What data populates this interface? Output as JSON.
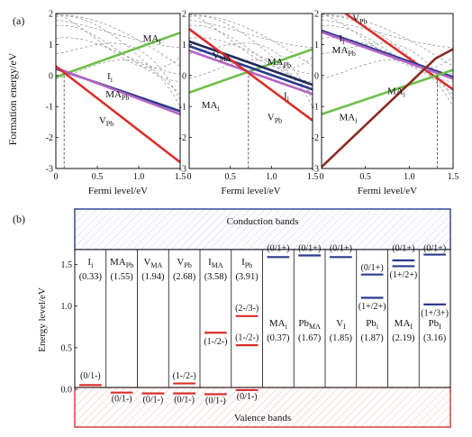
{
  "chart_data": [
    {
      "panel_label": "(a)",
      "type": "line",
      "ylabel": "Formation energy/eV",
      "xlabel": "Fermi level/eV",
      "ylim": [
        -3,
        2
      ],
      "xlim": [
        0,
        1.5
      ],
      "xticks": [
        "0",
        "0.5",
        "1.0",
        "1.5"
      ],
      "yticks": [
        "-3",
        "-2",
        "-1",
        "0",
        "1",
        "2"
      ],
      "panels": [
        {
          "pin_x": 0.1,
          "labels": [
            {
              "main": "MA",
              "sub": "i",
              "at": [
                1.05,
                1.1
              ]
            },
            {
              "main": "I",
              "sub": "i",
              "at": [
                0.62,
                -0.12
              ]
            },
            {
              "main": "MA",
              "sub": "Pb",
              "at": [
                0.6,
                -0.7
              ]
            },
            {
              "main": "V",
              "sub": "Pb",
              "at": [
                0.52,
                -1.55
              ]
            }
          ],
          "series": [
            {
              "key": "MA_i",
              "color": "#6cc04a",
              "x": [
                0,
                1.5
              ],
              "y": [
                -0.05,
                1.38
              ]
            },
            {
              "key": "I_i",
              "color": "#2b3a8c",
              "x": [
                0,
                1.5
              ],
              "y": [
                0.22,
                -1.15
              ]
            },
            {
              "key": "MA_Pb",
              "color": "#b565c4",
              "x": [
                0,
                1.5
              ],
              "y": [
                0.25,
                -1.25
              ]
            },
            {
              "key": "V_Pb",
              "color": "#d9302b",
              "x": [
                0,
                1.5
              ],
              "y": [
                0.3,
                -2.8
              ]
            }
          ]
        },
        {
          "pin_x": 0.72,
          "labels": [
            {
              "main": "V",
              "sub": "MA",
              "at": [
                0.28,
                0.55
              ]
            },
            {
              "main": "MA",
              "sub": "Pb",
              "at": [
                0.95,
                0.35
              ]
            },
            {
              "main": "MA",
              "sub": "i",
              "at": [
                0.15,
                -1.05
              ]
            },
            {
              "main": "I",
              "sub": "i",
              "at": [
                1.15,
                -0.75
              ]
            },
            {
              "main": "V",
              "sub": "Pb",
              "at": [
                0.95,
                -1.45
              ]
            }
          ],
          "series": [
            {
              "key": "MA_i",
              "color": "#6cc04a",
              "x": [
                0,
                1.5
              ],
              "y": [
                -0.55,
                0.85
              ]
            },
            {
              "key": "V_MA",
              "color": "#1f2a5c",
              "x": [
                0,
                1.5
              ],
              "y": [
                1.1,
                -0.3
              ]
            },
            {
              "key": "MA_Pb",
              "color": "#2b3a8c",
              "x": [
                0,
                1.5
              ],
              "y": [
                0.95,
                -0.45
              ]
            },
            {
              "key": "I_i",
              "color": "#b565c4",
              "x": [
                0,
                1.5
              ],
              "y": [
                0.8,
                -0.6
              ]
            },
            {
              "key": "V_Pb",
              "color": "#d9302b",
              "x": [
                0,
                1.5
              ],
              "y": [
                1.5,
                -1.45
              ]
            }
          ]
        },
        {
          "pin_x": 1.32,
          "labels": [
            {
              "main": "V",
              "sub": "Pb",
              "at": [
                0.35,
                1.75
              ]
            },
            {
              "main": "I",
              "sub": "i",
              "at": [
                0.2,
                1.1
              ]
            },
            {
              "main": "MA",
              "sub": "Pb",
              "at": [
                0.12,
                0.72
              ]
            },
            {
              "main": "MA",
              "sub": "i",
              "at": [
                0.75,
                -0.6
              ]
            },
            {
              "main": "MA",
              "sub": "i",
              "at": [
                0.2,
                -1.45
              ]
            }
          ],
          "series": [
            {
              "key": "V_Pb",
              "color": "#d9302b",
              "x": [
                0,
                1.5
              ],
              "y": [
                2.55,
                -0.45
              ]
            },
            {
              "key": "I_i",
              "color": "#2b3a8c",
              "x": [
                0,
                1.5
              ],
              "y": [
                1.45,
                -0.05
              ]
            },
            {
              "key": "MA_Pb",
              "color": "#b565c4",
              "x": [
                0,
                1.5
              ],
              "y": [
                1.4,
                -0.1
              ]
            },
            {
              "key": "MA_i",
              "color": "#6cc04a",
              "x": [
                0,
                1.5
              ],
              "y": [
                -1.25,
                0.18
              ]
            },
            {
              "key": "MA_i_2",
              "color": "#8b2a24",
              "x": [
                0,
                1.3,
                1.5
              ],
              "y": [
                -2.95,
                0.55,
                0.85
              ]
            }
          ]
        }
      ]
    },
    {
      "panel_label": "(b)",
      "type": "bar",
      "ylabel": "Energy level/eV",
      "ylim": [
        -0.3,
        1.6
      ],
      "yticks": [
        "0.0",
        "0.5",
        "1.0",
        "1.5"
      ],
      "conduction_label": "Conduction bands",
      "valence_label": "Valence bands",
      "columns": [
        {
          "main": "I",
          "sub": "i",
          "val": "(0.33)",
          "levels": [
            {
              "y": 0.05,
              "color": "#d9302b",
              "label": "(0/1-)",
              "ly": 0.17
            }
          ]
        },
        {
          "main": "MA",
          "sub": "Pb",
          "val": "(1.55)",
          "levels": [
            {
              "y": -0.04,
              "color": "#d9302b",
              "label": "(0/1-)",
              "ly": -0.11
            }
          ]
        },
        {
          "main": "V",
          "sub": "MA",
          "val": "(1.94)",
          "levels": [
            {
              "y": -0.05,
              "color": "#d9302b",
              "label": "(0/1-)",
              "ly": -0.12
            }
          ]
        },
        {
          "main": "V",
          "sub": "Pb",
          "val": "(2.68)",
          "levels": [
            {
              "y": 0.07,
              "color": "#d9302b",
              "label": "(1-/2-)",
              "ly": 0.17
            },
            {
              "y": -0.05,
              "color": "#d9302b",
              "label": "(0/1-)",
              "ly": -0.12
            }
          ]
        },
        {
          "main": "I",
          "sub": "MA",
          "val": "(3.58)",
          "levels": [
            {
              "y": 0.68,
              "color": "#d9302b",
              "label": "(1-/2-)",
              "ly": 0.58
            },
            {
              "y": -0.06,
              "color": "#d9302b",
              "label": "(0/1-)",
              "ly": -0.13
            }
          ]
        },
        {
          "main": "I",
          "sub": "Pb",
          "val": "(3.91)",
          "levels": [
            {
              "y": 0.88,
              "color": "#d9302b",
              "label": "(2-/3-)",
              "ly": 0.98
            },
            {
              "y": 0.53,
              "color": "#d9302b",
              "label": "(1-/2-)",
              "ly": 0.63
            },
            {
              "y": -0.01,
              "color": "#d9302b",
              "label": "(0/1-)",
              "ly": -0.08
            }
          ]
        },
        {
          "main": "MA",
          "sub": "i",
          "val": "(0.37)",
          "levels": [
            {
              "y": 1.59,
              "color": "#2b3a8c",
              "label": "(0/1+)",
              "ly": 1.7
            }
          ]
        },
        {
          "main": "Pb",
          "sub": "MA",
          "val": "(1.67)",
          "levels": [
            {
              "y": 1.61,
              "color": "#2b3a8c",
              "label": "(0/1+)",
              "ly": 1.7
            }
          ]
        },
        {
          "main": "V",
          "sub": "I",
          "val": "(1.85)",
          "levels": [
            {
              "y": 1.59,
              "color": "#2b3a8c",
              "label": "(0/1+)",
              "ly": 1.7
            }
          ]
        },
        {
          "main": "Pb",
          "sub": "i",
          "val": "(1.87)",
          "levels": [
            {
              "y": 1.38,
              "color": "#2b3a8c",
              "label": "(0/1+)",
              "ly": 1.47
            },
            {
              "y": 1.1,
              "color": "#2b3a8c",
              "label": "(1+/2+)",
              "ly": 1.0
            }
          ]
        },
        {
          "main": "MA",
          "sub": "I",
          "val": "(2.19)",
          "levels": [
            {
              "y": 1.55,
              "color": "#2b3a8c",
              "label": "(0/1+)",
              "ly": 1.7
            },
            {
              "y": 1.48,
              "color": "#2b3a8c",
              "label": "(1+/2+)",
              "ly": 1.38
            }
          ]
        },
        {
          "main": "Pb",
          "sub": "I",
          "val": "(3.16)",
          "levels": [
            {
              "y": 1.62,
              "color": "#2b3a8c",
              "label": "(0/1+)",
              "ly": 1.7
            },
            {
              "y": 1.02,
              "color": "#2b3a8c",
              "label": "(1+/3+)",
              "ly": 0.92
            }
          ]
        }
      ]
    }
  ]
}
